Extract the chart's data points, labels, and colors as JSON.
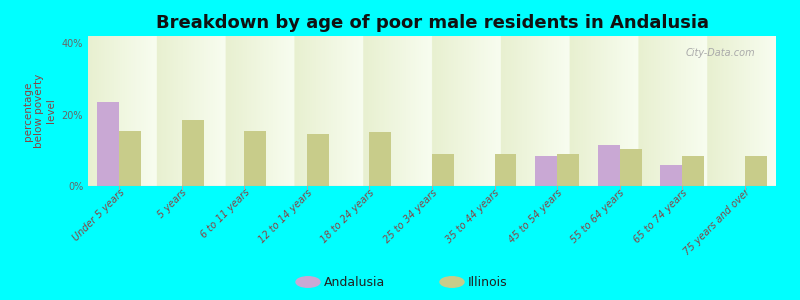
{
  "title": "Breakdown by age of poor male residents in Andalusia",
  "ylabel": "percentage\nbelow poverty\nlevel",
  "categories": [
    "Under 5 years",
    "5 years",
    "6 to 11 years",
    "12 to 14 years",
    "18 to 24 years",
    "25 to 34 years",
    "35 to 44 years",
    "45 to 54 years",
    "55 to 64 years",
    "65 to 74 years",
    "75 years and over"
  ],
  "andalusia": [
    23.5,
    0,
    0,
    0,
    0,
    0,
    0,
    8.5,
    11.5,
    6.0,
    0
  ],
  "illinois": [
    15.5,
    18.5,
    15.5,
    14.5,
    15.0,
    9.0,
    9.0,
    9.0,
    10.5,
    8.5,
    8.5
  ],
  "andalusia_color": "#c9a8d4",
  "illinois_color": "#c8cc8a",
  "background_color": "#00ffff",
  "plot_bg_top": "#e8f0d0",
  "plot_bg_bottom": "#f8fdf0",
  "ylim": [
    0,
    42
  ],
  "yticks": [
    0,
    20,
    40
  ],
  "ytick_labels": [
    "0%",
    "20%",
    "40%"
  ],
  "bar_width": 0.35,
  "title_fontsize": 13,
  "ylabel_fontsize": 7.5,
  "tick_fontsize": 7,
  "legend_fontsize": 9,
  "watermark": "City-Data.com"
}
